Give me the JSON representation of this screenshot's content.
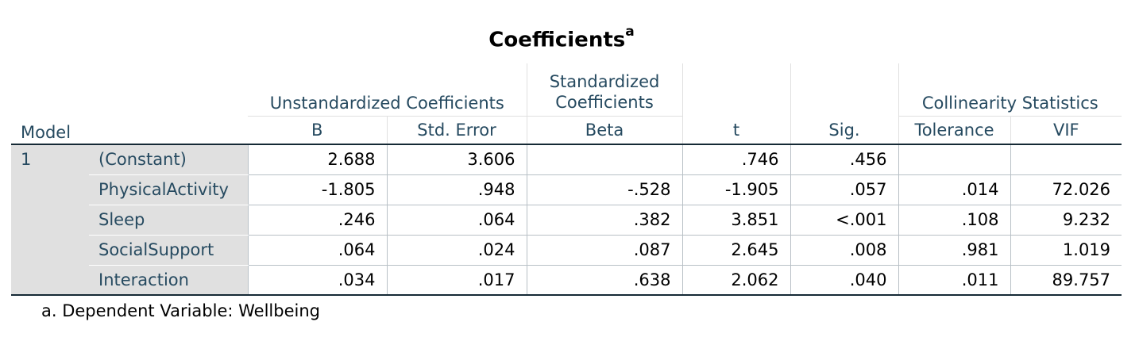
{
  "title": "Coefficients",
  "title_sup": "a",
  "headers": {
    "model": "Model",
    "unstandardized": "Unstandardized Coefficients",
    "standardized_line1": "Standardized",
    "standardized_line2": "Coefficients",
    "collinearity": "Collinearity Statistics",
    "b": "B",
    "std_error": "Std. Error",
    "beta": "Beta",
    "t": "t",
    "sig": "Sig.",
    "tolerance": "Tolerance",
    "vif": "VIF"
  },
  "model_number": "1",
  "rows": [
    {
      "var": "(Constant)",
      "b": "2.688",
      "se": "3.606",
      "beta": "",
      "t": ".746",
      "sig": ".456",
      "tol": "",
      "vif": ""
    },
    {
      "var": "PhysicalActivity",
      "b": "-1.805",
      "se": ".948",
      "beta": "-.528",
      "t": "-1.905",
      "sig": ".057",
      "tol": ".014",
      "vif": "72.026"
    },
    {
      "var": "Sleep",
      "b": ".246",
      "se": ".064",
      "beta": ".382",
      "t": "3.851",
      "sig": "<.001",
      "tol": ".108",
      "vif": "9.232"
    },
    {
      "var": "SocialSupport",
      "b": ".064",
      "se": ".024",
      "beta": ".087",
      "t": "2.645",
      "sig": ".008",
      "tol": ".981",
      "vif": "1.019"
    },
    {
      "var": "Interaction",
      "b": ".034",
      "se": ".017",
      "beta": ".638",
      "t": "2.062",
      "sig": ".040",
      "tol": ".011",
      "vif": "89.757"
    }
  ],
  "footnote": "a. Dependent Variable: Wellbeing"
}
